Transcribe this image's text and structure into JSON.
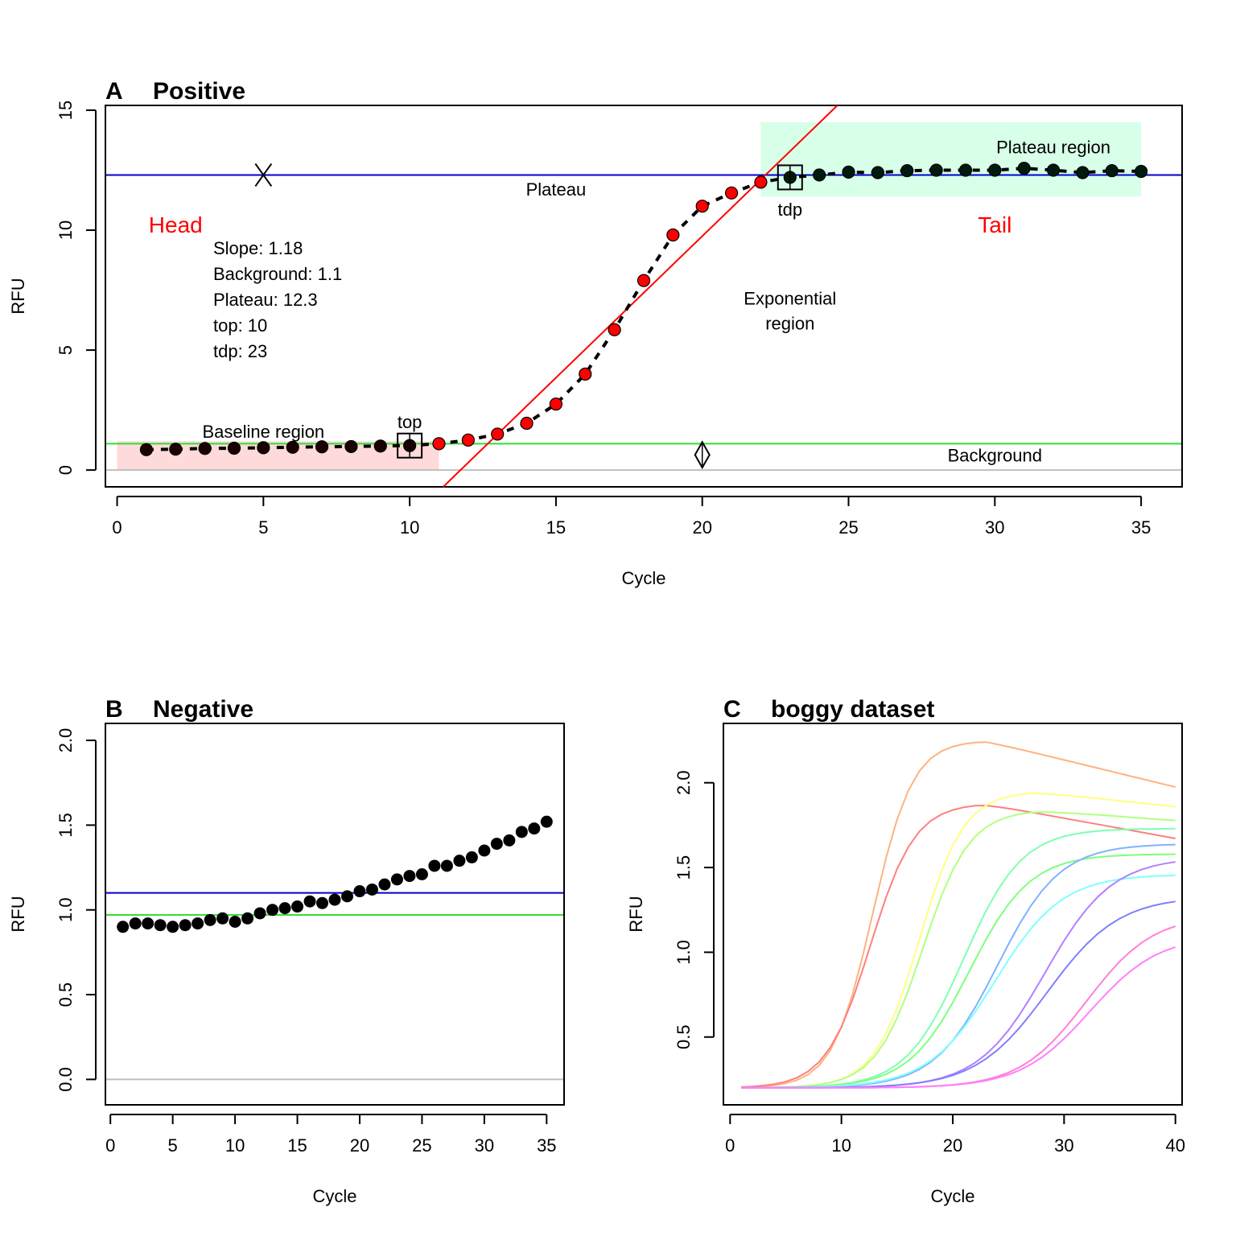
{
  "chart_data": [
    {
      "type": "scatter",
      "panel": "A",
      "title": "Positive",
      "xlabel": "Cycle",
      "ylabel": "RFU",
      "xlim": [
        -0.4,
        36.4
      ],
      "ylim": [
        -0.7,
        15.2
      ],
      "xticks": [
        0,
        5,
        10,
        15,
        20,
        25,
        30,
        35
      ],
      "yticks": [
        0,
        5,
        10,
        15
      ],
      "x": [
        1,
        2,
        3,
        4,
        5,
        6,
        7,
        8,
        9,
        10,
        11,
        12,
        13,
        14,
        15,
        16,
        17,
        18,
        19,
        20,
        21,
        22,
        23,
        24,
        25,
        26,
        27,
        28,
        29,
        30,
        31,
        32,
        33,
        34,
        35
      ],
      "y": [
        0.85,
        0.87,
        0.9,
        0.91,
        0.93,
        0.95,
        0.97,
        0.98,
        1.0,
        1.02,
        1.1,
        1.25,
        1.5,
        1.95,
        2.75,
        4.0,
        5.85,
        7.9,
        9.8,
        11.0,
        11.55,
        12.0,
        12.2,
        12.3,
        12.42,
        12.4,
        12.48,
        12.5,
        12.5,
        12.5,
        12.58,
        12.5,
        12.4,
        12.48,
        12.45
      ],
      "point_colors": [
        "#1a0000",
        "#1a0000",
        "#1a0000",
        "#1a0000",
        "#1a0000",
        "#1a0000",
        "#1a0000",
        "#1a0000",
        "#1a0000",
        "#1a0000",
        "#ff0000",
        "#ff0000",
        "#ff0000",
        "#ff0000",
        "#ff0000",
        "#ff0000",
        "#ff0000",
        "#ff0000",
        "#ff0000",
        "#ff0000",
        "#ff0000",
        "#ff0000",
        "#001a0d",
        "#001a0d",
        "#001a0d",
        "#001a0d",
        "#001a0d",
        "#001a0d",
        "#001a0d",
        "#001a0d",
        "#001a0d",
        "#001a0d",
        "#001a0d",
        "#001a0d",
        "#001a0d"
      ],
      "fit_line": {
        "slope": 1.18,
        "intercept": -13.85,
        "color": "#ff0000"
      },
      "plateau_line": {
        "value": 12.3,
        "color": "#0000cc"
      },
      "background_line": {
        "value": 1.1,
        "color": "#33dd33"
      },
      "zero_line": {
        "value": 0,
        "color": "#bebebe"
      },
      "baseline_region": {
        "x": [
          0,
          11
        ],
        "y": [
          0,
          1.2
        ],
        "color": "#ffdada"
      },
      "plateau_region": {
        "x": [
          22,
          35
        ],
        "y": [
          11.4,
          14.5
        ],
        "color": "#d8ffe8"
      },
      "head_label": "Head",
      "tail_label": "Tail",
      "region_labels": {
        "baseline": "Baseline region",
        "plateau_region": "Plateau region",
        "plateau": "Plateau",
        "exponential_1": "Exponential",
        "exponential_2": "region",
        "background": "Background"
      },
      "marker_labels": {
        "top": "top",
        "tdp": "tdp"
      },
      "top": 10,
      "tdp": 23,
      "stats": [
        "Slope: 1.18",
        "Background: 1.1",
        "Plateau: 12.3",
        "top: 10",
        "tdp: 23"
      ]
    },
    {
      "type": "scatter",
      "panel": "B",
      "title": "Negative",
      "xlabel": "Cycle",
      "ylabel": "RFU",
      "xlim": [
        -0.4,
        36.4
      ],
      "ylim": [
        -0.15,
        2.1
      ],
      "xticks": [
        0,
        5,
        10,
        15,
        20,
        25,
        30,
        35
      ],
      "yticks": [
        "0.0",
        "0.5",
        "1.0",
        "1.5",
        "2.0"
      ],
      "x": [
        1,
        2,
        3,
        4,
        5,
        6,
        7,
        8,
        9,
        10,
        11,
        12,
        13,
        14,
        15,
        16,
        17,
        18,
        19,
        20,
        21,
        22,
        23,
        24,
        25,
        26,
        27,
        28,
        29,
        30,
        31,
        32,
        33,
        34,
        35
      ],
      "y": [
        0.9,
        0.92,
        0.92,
        0.91,
        0.9,
        0.91,
        0.92,
        0.94,
        0.95,
        0.93,
        0.95,
        0.98,
        1.0,
        1.01,
        1.02,
        1.05,
        1.04,
        1.06,
        1.08,
        1.11,
        1.12,
        1.15,
        1.18,
        1.2,
        1.21,
        1.26,
        1.26,
        1.29,
        1.31,
        1.35,
        1.39,
        1.41,
        1.46,
        1.48,
        1.52
      ],
      "blue_line": {
        "value": 1.1,
        "color": "#0000cc"
      },
      "green_line": {
        "value": 0.97,
        "color": "#33dd33"
      },
      "zero_line": {
        "value": 0,
        "color": "#bebebe"
      }
    },
    {
      "type": "line",
      "panel": "C",
      "title": "boggy dataset",
      "xlabel": "Cycle",
      "ylabel": "RFU",
      "xlim": [
        -0.6,
        40.6
      ],
      "ylim": [
        0.1,
        2.35
      ],
      "xticks": [
        0,
        10,
        20,
        30,
        40
      ],
      "yticks": [
        "0.5",
        "1.0",
        "1.5",
        "2.0"
      ],
      "series": [
        {
          "color": "#ffb27f",
          "base": 0.2,
          "top": 2.25,
          "mid": 12.8,
          "scale": 1.8,
          "decline": 0.016
        },
        {
          "color": "#ff7f7f",
          "base": 0.2,
          "top": 1.88,
          "mid": 12.6,
          "scale": 2.0,
          "decline": 0.012
        },
        {
          "color": "#ffff7f",
          "base": 0.2,
          "top": 1.95,
          "mid": 17.0,
          "scale": 2.0,
          "decline": 0.007
        },
        {
          "color": "#b2ff7f",
          "base": 0.2,
          "top": 1.84,
          "mid": 17.3,
          "scale": 2.1,
          "decline": 0.005
        },
        {
          "color": "#7fffb2",
          "base": 0.2,
          "top": 1.73,
          "mid": 21.0,
          "scale": 2.6,
          "decline": 0.0
        },
        {
          "color": "#7fff7f",
          "base": 0.2,
          "top": 1.58,
          "mid": 21.5,
          "scale": 2.7,
          "decline": 0.0
        },
        {
          "color": "#7fb2ff",
          "base": 0.2,
          "top": 1.64,
          "mid": 24.0,
          "scale": 2.8,
          "decline": 0.0
        },
        {
          "color": "#7fffff",
          "base": 0.2,
          "top": 1.46,
          "mid": 23.8,
          "scale": 3.0,
          "decline": 0.0
        },
        {
          "color": "#b27fff",
          "base": 0.2,
          "top": 1.56,
          "mid": 28.3,
          "scale": 3.0,
          "decline": 0.0
        },
        {
          "color": "#7f7fff",
          "base": 0.2,
          "top": 1.33,
          "mid": 28.5,
          "scale": 3.2,
          "decline": 0.0
        },
        {
          "color": "#ff7fd8",
          "base": 0.2,
          "top": 1.22,
          "mid": 32.0,
          "scale": 3.0,
          "decline": 0.0
        },
        {
          "color": "#ff7fff",
          "base": 0.2,
          "top": 1.1,
          "mid": 32.3,
          "scale": 3.1,
          "decline": 0.0
        }
      ],
      "cycles": [
        1,
        40
      ]
    }
  ]
}
